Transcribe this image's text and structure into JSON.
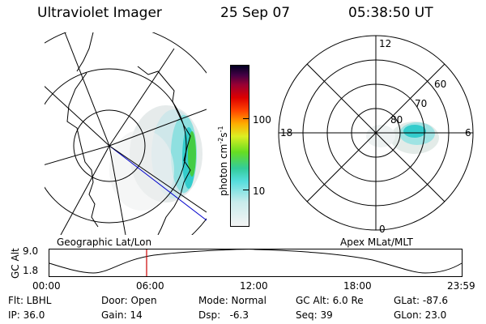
{
  "header": {
    "instrument": "Ultraviolet Imager",
    "date": "25 Sep 07",
    "time": "05:38:50 UT"
  },
  "geo_panel": {
    "label": "Geographic Lat/Lon"
  },
  "colorbar": {
    "title": "photon cm",
    "exp1": "-2",
    "mid": "s",
    "exp2": "-1",
    "ticks": [
      "100",
      "10"
    ]
  },
  "polar_panel": {
    "label": "Apex MLat/MLT",
    "mlt_labels": [
      "12",
      "18",
      "6",
      "0"
    ],
    "lat_labels": [
      "60",
      "70",
      "80"
    ]
  },
  "altitude_plot": {
    "ylabel": "GC Alt",
    "yticks": [
      "9.0",
      "1.8"
    ],
    "xticks": [
      "00:00",
      "06:00",
      "12:00",
      "18:00",
      "23:59"
    ],
    "marker_time": "05:38:50",
    "marker_color": "#cc0000"
  },
  "info": {
    "row1": {
      "filter": "Flt: LBHL",
      "door": "Door: Open",
      "mode": "Mode: Normal",
      "gc_alt": "GC Alt: 6.0 Re",
      "glat": "GLat: -87.6"
    },
    "row2": {
      "ip": "IP: 36.0",
      "gain": "Gain: 14",
      "dsp": "Dsp:   -6.3",
      "seq": "Seq: 39",
      "glon": "GLon: 23.0"
    }
  }
}
